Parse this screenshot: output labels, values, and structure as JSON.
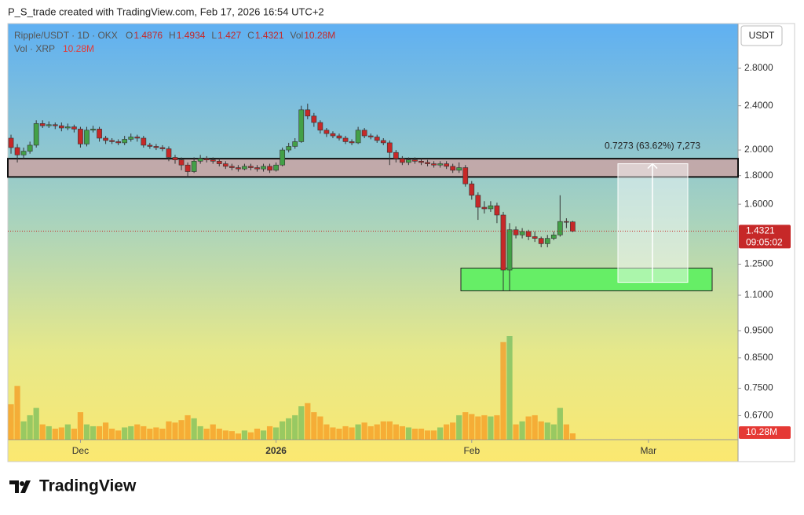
{
  "header": "P_S_trade created with TradingView.com, Feb 17, 2026 16:54 UTC+2",
  "brand": "TradingView",
  "chart_data": {
    "type": "candlestick",
    "symbol": "Ripple/USDT · 1D · OKX",
    "currency": "USDT",
    "ohlc_labels": [
      "O",
      "H",
      "L",
      "C",
      "Vol"
    ],
    "log_scale": true,
    "up_color": "#43a047",
    "down_color": "#c62828",
    "open": [
      2.1,
      2.02,
      1.96,
      1.99,
      2.04,
      2.23,
      2.21,
      2.22,
      2.21,
      2.19,
      2.2,
      2.18,
      2.05,
      2.17,
      2.18,
      2.1,
      2.08,
      2.07,
      2.06,
      2.09,
      2.11,
      2.1,
      2.04,
      2.03,
      2.02,
      2.01,
      1.94,
      1.92,
      1.88,
      1.83,
      1.91,
      1.93,
      1.92,
      1.91,
      1.89,
      1.87,
      1.86,
      1.85,
      1.87,
      1.86,
      1.85,
      1.87,
      1.84,
      1.88,
      2.0,
      2.03,
      2.07,
      2.36,
      2.3,
      2.24,
      2.17,
      2.14,
      2.12,
      2.1,
      2.07,
      2.06,
      2.17,
      2.12,
      2.11,
      2.08,
      2.06,
      1.98,
      1.93,
      1.9,
      1.92,
      1.91,
      1.9,
      1.89,
      1.88,
      1.89,
      1.87,
      1.84,
      1.86,
      1.74,
      1.66,
      1.58,
      1.57,
      1.59,
      1.53,
      1.22,
      1.44,
      1.41,
      1.43,
      1.4,
      1.39,
      1.36,
      1.39,
      1.41,
      1.49,
      1.4876
    ],
    "high": [
      2.13,
      2.05,
      2.02,
      2.07,
      2.26,
      2.26,
      2.25,
      2.24,
      2.24,
      2.23,
      2.22,
      2.2,
      2.2,
      2.21,
      2.2,
      2.12,
      2.1,
      2.09,
      2.12,
      2.14,
      2.13,
      2.12,
      2.06,
      2.05,
      2.04,
      2.03,
      1.96,
      1.94,
      1.9,
      1.94,
      1.96,
      1.95,
      1.94,
      1.93,
      1.91,
      1.89,
      1.88,
      1.89,
      1.89,
      1.88,
      1.89,
      1.89,
      1.9,
      2.02,
      2.06,
      2.1,
      2.4,
      2.42,
      2.33,
      2.26,
      2.19,
      2.16,
      2.14,
      2.12,
      2.09,
      2.2,
      2.19,
      2.14,
      2.13,
      2.1,
      2.08,
      2.0,
      1.95,
      1.94,
      1.94,
      1.93,
      1.92,
      1.91,
      1.91,
      1.91,
      1.89,
      1.9,
      1.88,
      1.76,
      1.68,
      1.62,
      1.62,
      1.61,
      1.55,
      1.48,
      1.46,
      1.45,
      1.44,
      1.43,
      1.4,
      1.41,
      1.43,
      1.66,
      1.51,
      1.4934
    ],
    "low": [
      1.97,
      1.9,
      1.93,
      1.97,
      2.02,
      2.19,
      2.19,
      2.18,
      2.16,
      2.17,
      2.15,
      2.02,
      2.03,
      2.15,
      2.07,
      2.05,
      2.05,
      2.04,
      2.04,
      2.07,
      2.07,
      2.02,
      2.01,
      2.0,
      1.99,
      1.91,
      1.89,
      1.84,
      1.79,
      1.82,
      1.89,
      1.9,
      1.89,
      1.87,
      1.85,
      1.84,
      1.83,
      1.84,
      1.84,
      1.83,
      1.83,
      1.82,
      1.83,
      1.87,
      1.98,
      2.01,
      2.06,
      2.27,
      2.2,
      2.14,
      2.11,
      2.1,
      2.08,
      2.05,
      2.04,
      2.05,
      2.1,
      2.09,
      2.06,
      2.04,
      1.88,
      1.9,
      1.88,
      1.88,
      1.89,
      1.88,
      1.87,
      1.86,
      1.86,
      1.85,
      1.82,
      1.82,
      1.72,
      1.63,
      1.5,
      1.54,
      1.55,
      1.48,
      1.12,
      1.12,
      1.39,
      1.39,
      1.38,
      1.37,
      1.34,
      1.34,
      1.38,
      1.4,
      1.45,
      1.427
    ],
    "close": [
      2.02,
      1.96,
      1.99,
      2.04,
      2.23,
      2.21,
      2.22,
      2.21,
      2.19,
      2.2,
      2.18,
      2.05,
      2.17,
      2.18,
      2.1,
      2.08,
      2.07,
      2.06,
      2.09,
      2.11,
      2.1,
      2.04,
      2.03,
      2.02,
      2.01,
      1.94,
      1.92,
      1.88,
      1.83,
      1.91,
      1.93,
      1.92,
      1.91,
      1.89,
      1.87,
      1.86,
      1.85,
      1.87,
      1.86,
      1.85,
      1.87,
      1.84,
      1.88,
      2.0,
      2.03,
      2.07,
      2.36,
      2.3,
      2.24,
      2.17,
      2.14,
      2.12,
      2.1,
      2.07,
      2.06,
      2.17,
      2.12,
      2.11,
      2.08,
      2.06,
      1.98,
      1.93,
      1.9,
      1.92,
      1.91,
      1.9,
      1.89,
      1.88,
      1.89,
      1.87,
      1.84,
      1.86,
      1.74,
      1.66,
      1.58,
      1.57,
      1.59,
      1.53,
      1.22,
      1.44,
      1.41,
      1.43,
      1.4,
      1.39,
      1.36,
      1.39,
      1.41,
      1.49,
      1.4876,
      1.4321
    ],
    "volume": {
      "name": "Vol · XRP",
      "last_label": "10.28M",
      "values": [
        58,
        88,
        30,
        40,
        52,
        25,
        22,
        18,
        20,
        25,
        18,
        45,
        25,
        22,
        22,
        28,
        18,
        15,
        20,
        22,
        25,
        22,
        18,
        20,
        18,
        30,
        28,
        32,
        40,
        35,
        22,
        18,
        25,
        18,
        15,
        14,
        10,
        15,
        12,
        18,
        15,
        22,
        20,
        30,
        35,
        40,
        55,
        60,
        45,
        38,
        25,
        20,
        18,
        22,
        20,
        25,
        28,
        22,
        25,
        30,
        30,
        25,
        22,
        20,
        18,
        18,
        15,
        15,
        20,
        25,
        28,
        40,
        45,
        42,
        38,
        40,
        38,
        40,
        160,
        170,
        25,
        30,
        38,
        40,
        30,
        28,
        25,
        52,
        25,
        10.28
      ]
    },
    "countdown": "09:05:02",
    "ylim": [
      0.607,
      3.366
    ],
    "yticks": [
      {
        "value": 2.8,
        "label": "2.8000"
      },
      {
        "value": 2.4,
        "label": "2.4000"
      },
      {
        "value": 2.0,
        "label": "2.0000"
      },
      {
        "value": 1.8,
        "label": "1.8000"
      },
      {
        "value": 1.6,
        "label": "1.6000"
      },
      {
        "value": 1.25,
        "label": "1.2500"
      },
      {
        "value": 1.1,
        "label": "1.1000"
      },
      {
        "value": 0.95,
        "label": "0.9500"
      },
      {
        "value": 0.85,
        "label": "0.8500"
      },
      {
        "value": 0.75,
        "label": "0.7500"
      },
      {
        "value": 0.67,
        "label": "0.6700"
      }
    ],
    "xlim": [
      -0.5,
      115.2
    ],
    "xticks": [
      {
        "value": 11,
        "label": "Dec"
      },
      {
        "value": 42,
        "label": "2026"
      },
      {
        "value": 73,
        "label": "Feb"
      },
      {
        "value": 101,
        "label": "Mar"
      }
    ],
    "resistance_zone": {
      "top": 1.93,
      "bottom": 1.79,
      "color": "#c9a3a3"
    },
    "support_zone": {
      "top": 1.23,
      "bottom": 1.12,
      "color": "#66ee66"
    },
    "measure": {
      "label": "0.7273 (63.62%) 7,273",
      "from": 1.16,
      "to": 1.89
    }
  }
}
